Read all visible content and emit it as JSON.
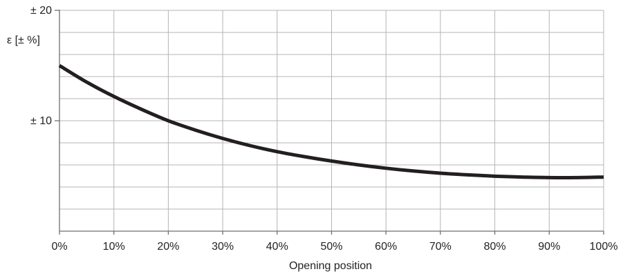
{
  "chart_data": {
    "type": "line",
    "title": "",
    "xlabel": "Opening position",
    "ylabel": "ε [± %]",
    "xlim": [
      0,
      100
    ],
    "ylim": [
      0,
      20
    ],
    "x_minor_step": 10,
    "y_minor_step": 2,
    "grid": true,
    "x_ticks": [
      {
        "value": 0,
        "label": "0%"
      },
      {
        "value": 10,
        "label": "10%"
      },
      {
        "value": 20,
        "label": "20%"
      },
      {
        "value": 30,
        "label": "30%"
      },
      {
        "value": 40,
        "label": "40%"
      },
      {
        "value": 50,
        "label": "50%"
      },
      {
        "value": 60,
        "label": "60%"
      },
      {
        "value": 70,
        "label": "70%"
      },
      {
        "value": 80,
        "label": "80%"
      },
      {
        "value": 90,
        "label": "90%"
      },
      {
        "value": 100,
        "label": "100%"
      }
    ],
    "y_ticks": [
      {
        "value": 10,
        "label": "± 10"
      },
      {
        "value": 20,
        "label": "± 20"
      }
    ],
    "series": [
      {
        "color": "#231f20",
        "x": [
          0,
          5,
          10,
          15,
          20,
          25,
          30,
          35,
          40,
          45,
          50,
          55,
          60,
          65,
          70,
          75,
          80,
          85,
          90,
          95,
          100
        ],
        "y": [
          15.0,
          13.5,
          12.2,
          11.05,
          10.0,
          9.15,
          8.4,
          7.75,
          7.2,
          6.75,
          6.35,
          6.0,
          5.7,
          5.45,
          5.25,
          5.1,
          4.98,
          4.9,
          4.85,
          4.85,
          4.9
        ]
      }
    ]
  }
}
